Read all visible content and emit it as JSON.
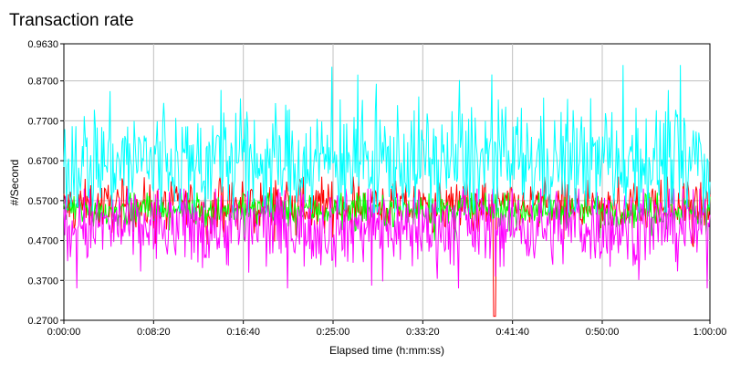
{
  "chart_data": {
    "type": "line",
    "title": "Transaction rate",
    "xlabel": "Elapsed time (h:mm:ss)",
    "ylabel": "#/Second",
    "x_range_seconds": [
      0,
      3600
    ],
    "xlim": [
      "0:00:00",
      "1:00:00"
    ],
    "ylim": [
      0.27,
      0.963
    ],
    "x_ticks": [
      "0:00:00",
      "0:08:20",
      "0:16:40",
      "0:25:00",
      "0:33:20",
      "0:41:40",
      "0:50:00",
      "1:00:00"
    ],
    "y_ticks": [
      "0.2700",
      "0.3700",
      "0.4700",
      "0.5700",
      "0.6700",
      "0.7700",
      "0.8700",
      "0.9630"
    ],
    "grid": true,
    "legend": "none",
    "series": [
      {
        "color": "#ff0000",
        "mean": 0.556,
        "spread": 0.03,
        "min_seen": 0.28,
        "max_seen": 0.63
      },
      {
        "color": "#00ff00",
        "mean": 0.545,
        "spread": 0.02,
        "min_seen": 0.47,
        "max_seen": 0.59
      },
      {
        "color": "#ff00ff",
        "mean": 0.505,
        "spread": 0.05,
        "min_seen": 0.35,
        "max_seen": 0.6
      },
      {
        "color": "#00ffff",
        "mean": 0.67,
        "spread": 0.07,
        "min_seen": 0.54,
        "max_seen": 0.91
      }
    ]
  }
}
